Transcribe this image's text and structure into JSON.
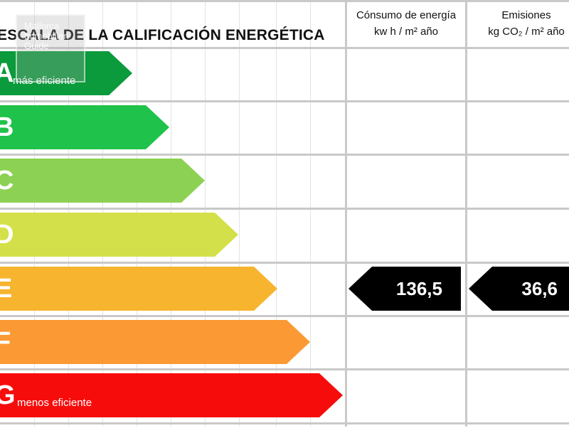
{
  "title": "ESCALA DE LA CALIFICACIÓN ENERGÉTICA",
  "columns": {
    "energy": {
      "line1": "Cónsumo de energía",
      "line2": "kw h / m² año"
    },
    "emissions": {
      "line1": "Emisiones",
      "line2": "kg CO₂ / m² año"
    }
  },
  "watermark": {
    "line1": "Mallorca",
    "line2": "Immobilien",
    "line3": "Guide"
  },
  "ratings": [
    {
      "letter": "A",
      "label": "más eficiente",
      "color": "#0b9a3c"
    },
    {
      "letter": "B",
      "label": "",
      "color": "#1fc24a"
    },
    {
      "letter": "C",
      "label": "",
      "color": "#8cd154"
    },
    {
      "letter": "D",
      "label": "",
      "color": "#d4e04a"
    },
    {
      "letter": "E",
      "label": "",
      "color": "#f7b42e"
    },
    {
      "letter": "F",
      "label": "",
      "color": "#fb9a34"
    },
    {
      "letter": "G",
      "label": "menos eficiente",
      "color": "#f70c0c"
    }
  ],
  "result": {
    "rating": "E",
    "energy_value": "136,5",
    "emissions_value": "36,6"
  }
}
